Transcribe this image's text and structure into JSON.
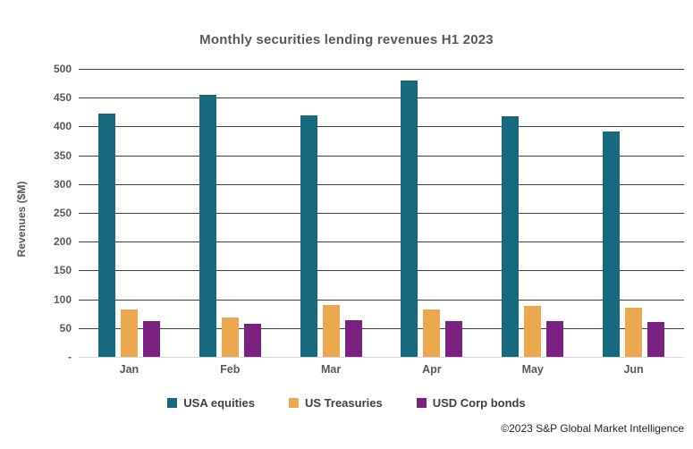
{
  "footer": "©2023 S&P Global Market Intelligence",
  "chart_data": {
    "type": "bar",
    "title": "Monthly securities lending revenues H1 2023",
    "categories": [
      "Jan",
      "Feb",
      "Mar",
      "Apr",
      "May",
      "Jun"
    ],
    "series": [
      {
        "name": "USA equities",
        "color": "#17697D",
        "values": [
          422,
          455,
          420,
          480,
          418,
          392
        ]
      },
      {
        "name": "US Treasuries",
        "color": "#ECA84E",
        "values": [
          82,
          68,
          90,
          82,
          88,
          86
        ]
      },
      {
        "name": "USD Corp bonds",
        "color": "#7A2182",
        "values": [
          62,
          57,
          64,
          62,
          62,
          60
        ]
      }
    ],
    "xlabel": "",
    "ylabel": "Revenues ($M)",
    "ylim": [
      0,
      500
    ],
    "ytick_step": 50,
    "ytick_labels": [
      "-",
      "50",
      "100",
      "150",
      "200",
      "250",
      "300",
      "350",
      "400",
      "450",
      "500"
    ],
    "grid": true,
    "legend_position": "bottom",
    "colors": {
      "title_text": "#595959",
      "axis_text": "#595959",
      "gridline": "#3F3F3F",
      "baseline": "#D9D9D9",
      "background": "#FFFFFF"
    }
  }
}
